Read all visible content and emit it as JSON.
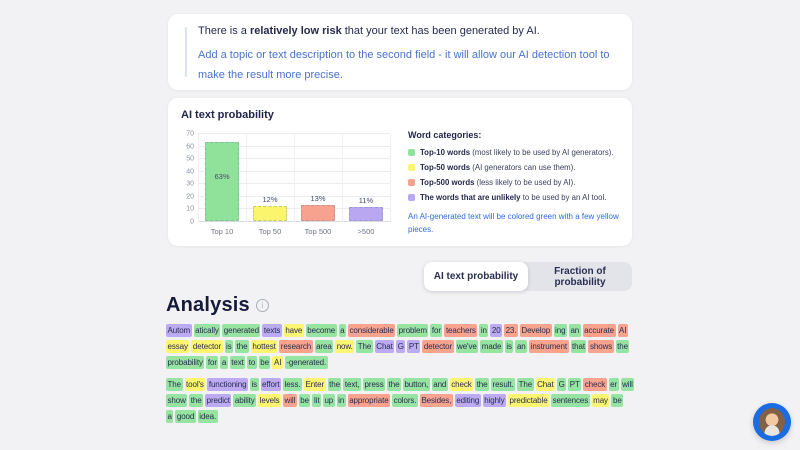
{
  "result_card": {
    "prefix": "There is a ",
    "bold": "relatively low risk",
    "suffix": " that your text has been generated by AI.",
    "hint": "Add a topic or text description to the second field - it will allow our AI detection tool to make the result more precise."
  },
  "chart_card": {
    "title": "AI text probability",
    "legend_title": "Word categories:",
    "legend": [
      {
        "color": "#90e29b",
        "bold": "Top-10 words",
        "rest": " (most likely to be used by AI generators)."
      },
      {
        "color": "#fbf46d",
        "bold": "Top-50 words",
        "rest": " (AI generators can use them)."
      },
      {
        "color": "#f6a28e",
        "bold": "Top-500 words",
        "rest": " (less likely to be used by AI)."
      },
      {
        "color": "#b9a7f1",
        "bold": "The words that are unlikely",
        "rest": " to be used by an AI tool."
      }
    ],
    "note": "An AI-generated text will be colored green with a few yellow pieces."
  },
  "chart_data": {
    "type": "bar",
    "title": "AI text probability",
    "categories": [
      "Top 10",
      "Top 50",
      "Top 500",
      ">500"
    ],
    "values": [
      63,
      12,
      13,
      11
    ],
    "labels": [
      "63%",
      "12%",
      "13%",
      "11%"
    ],
    "colors": [
      "#90e29b",
      "#fbf46d",
      "#f6a28e",
      "#b9a7f1"
    ],
    "ylim": [
      0,
      70
    ],
    "yticks": [
      0,
      10,
      20,
      30,
      40,
      50,
      60,
      70
    ],
    "grid": true,
    "legend_position": "right"
  },
  "tabs": {
    "items": [
      {
        "label": "AI text probability",
        "active": true
      },
      {
        "label": "Fraction of probability",
        "active": false
      }
    ]
  },
  "analysis": {
    "title": "Analysis",
    "highlight_colors": {
      "g": "#97e3a1",
      "y": "#fcf572",
      "r": "#f7a38e",
      "p": "#bcaaf2"
    },
    "paragraphs": [
      {
        "lines": [
          [
            [
              "Autom",
              "p"
            ],
            [
              "atically",
              "g"
            ],
            [
              "generated",
              "g"
            ],
            [
              "texts",
              "p"
            ],
            [
              "have",
              "y"
            ],
            [
              "become",
              "g"
            ],
            [
              "a",
              "g"
            ],
            [
              "considerable",
              "r"
            ],
            [
              "problem",
              "g"
            ],
            [
              "for",
              "g"
            ],
            [
              "teachers",
              "r"
            ],
            [
              "in",
              "g"
            ],
            [
              "20",
              "p"
            ],
            [
              "23.",
              "r"
            ],
            [
              "Develop",
              "r"
            ],
            [
              "ing",
              "g"
            ],
            [
              "an",
              "g"
            ],
            [
              "accurate",
              "r"
            ],
            [
              "AI",
              "r"
            ]
          ],
          [
            [
              "essay",
              "y"
            ],
            [
              "detector",
              "y"
            ],
            [
              "is",
              "g"
            ],
            [
              "the",
              "g"
            ],
            [
              "hottest",
              "y"
            ],
            [
              "research",
              "r"
            ],
            [
              "area",
              "g"
            ],
            [
              "now.",
              "y"
            ],
            [
              "The",
              "g"
            ],
            [
              "Chat",
              "p"
            ],
            [
              "G",
              "p"
            ],
            [
              "PT",
              "p"
            ],
            [
              "detector",
              "r"
            ],
            [
              "we've",
              "g"
            ],
            [
              "made",
              "g"
            ],
            [
              "is",
              "g"
            ],
            [
              "an",
              "g"
            ],
            [
              "instrument",
              "r"
            ],
            [
              "that",
              "g"
            ],
            [
              "shows",
              "r"
            ],
            [
              "the",
              "g"
            ]
          ],
          [
            [
              "probability",
              "g"
            ],
            [
              "for",
              "g"
            ],
            [
              "a",
              "g"
            ],
            [
              "text",
              "g"
            ],
            [
              "to",
              "g"
            ],
            [
              "be",
              "g"
            ],
            [
              "AI",
              "y"
            ],
            [
              "-generated.",
              "g"
            ]
          ]
        ]
      },
      {
        "lines": [
          [
            [
              "The",
              "g"
            ],
            [
              "tool's",
              "y"
            ],
            [
              "functioning",
              "p"
            ],
            [
              "is",
              "g"
            ],
            [
              "effort",
              "p"
            ],
            [
              "less.",
              "g"
            ],
            [
              "Enter",
              "y"
            ],
            [
              "the",
              "g"
            ],
            [
              "text,",
              "g"
            ],
            [
              "press",
              "g"
            ],
            [
              "the",
              "g"
            ],
            [
              "button,",
              "g"
            ],
            [
              "and",
              "g"
            ],
            [
              "check",
              "y"
            ],
            [
              "the",
              "g"
            ],
            [
              "result.",
              "g"
            ],
            [
              "The",
              "g"
            ],
            [
              "Chat",
              "y"
            ],
            [
              "G",
              "g"
            ],
            [
              "PT",
              "g"
            ],
            [
              "check",
              "r"
            ],
            [
              "er",
              "g"
            ],
            [
              "will",
              "g"
            ]
          ],
          [
            [
              "show",
              "g"
            ],
            [
              "the",
              "g"
            ],
            [
              "predict",
              "p"
            ],
            [
              "ability",
              "g"
            ],
            [
              "levels",
              "y"
            ],
            [
              "will",
              "r"
            ],
            [
              "be",
              "g"
            ],
            [
              "lit",
              "g"
            ],
            [
              "up",
              "g"
            ],
            [
              "in",
              "g"
            ],
            [
              "appropriate",
              "r"
            ],
            [
              "colors.",
              "g"
            ],
            [
              "Besides,",
              "r"
            ],
            [
              "editing",
              "p"
            ],
            [
              "highly",
              "p"
            ],
            [
              "predictable",
              "y"
            ],
            [
              "sentences",
              "g"
            ],
            [
              "may",
              "y"
            ],
            [
              "be",
              "g"
            ]
          ],
          [
            [
              "a",
              "g"
            ],
            [
              "good",
              "g"
            ],
            [
              "idea.",
              "g"
            ]
          ]
        ]
      }
    ]
  }
}
